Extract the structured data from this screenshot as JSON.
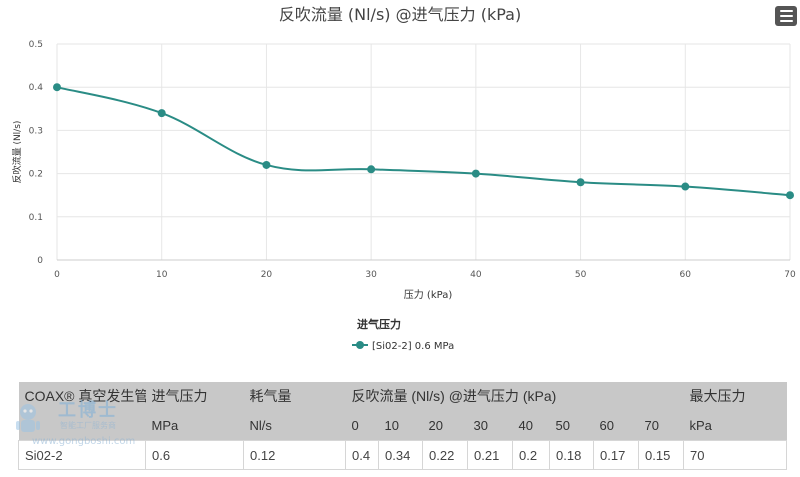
{
  "chart_data": {
    "type": "line",
    "title": "反吹流量 (Nl/s) @进气压力 (kPa)",
    "xlabel": "压力 (kPa)",
    "ylabel": "反吹流量 (Nl/s)",
    "x": [
      0,
      10,
      20,
      30,
      40,
      50,
      60,
      70
    ],
    "xlim": [
      0,
      70
    ],
    "ylim": [
      0,
      0.5
    ],
    "xticks": [
      "0",
      "10",
      "20",
      "30",
      "40",
      "50",
      "60",
      "70"
    ],
    "yticks": [
      "0",
      "0.1",
      "0.2",
      "0.3",
      "0.4",
      "0.5"
    ],
    "legend_title": "进气压力",
    "legend_position": "bottom-center",
    "grid": true,
    "series": [
      {
        "name": "[Si02-2] 0.6 MPa",
        "values": [
          0.4,
          0.34,
          0.22,
          0.21,
          0.2,
          0.18,
          0.17,
          0.15
        ],
        "color": "#2a8c85"
      }
    ]
  },
  "menu": {
    "icon": "hamburger-menu-icon"
  },
  "table": {
    "header1": {
      "model": "COAX® 真空发生管",
      "inlet_pressure": "进气压力",
      "air_consumption": "耗气量",
      "blowoff_flow": "反吹流量 (Nl/s) @进气压力 (kPa)",
      "max_pressure": "最大压力"
    },
    "header2": {
      "inlet_unit": "MPa",
      "consumption_unit": "Nl/s",
      "pressures": [
        "0",
        "10",
        "20",
        "30",
        "40",
        "50",
        "60",
        "70"
      ],
      "max_unit": "kPa"
    },
    "row": {
      "model": "Si02-2",
      "inlet_pressure": "0.6",
      "air_consumption": "0.12",
      "flows": [
        "0.4",
        "0.34",
        "0.22",
        "0.21",
        "0.2",
        "0.18",
        "0.17",
        "0.15"
      ],
      "max_pressure": "70"
    }
  },
  "watermark": {
    "brand": "工博士",
    "subtitle": "智能工厂服务商",
    "url": "www.gongboshi.com"
  }
}
